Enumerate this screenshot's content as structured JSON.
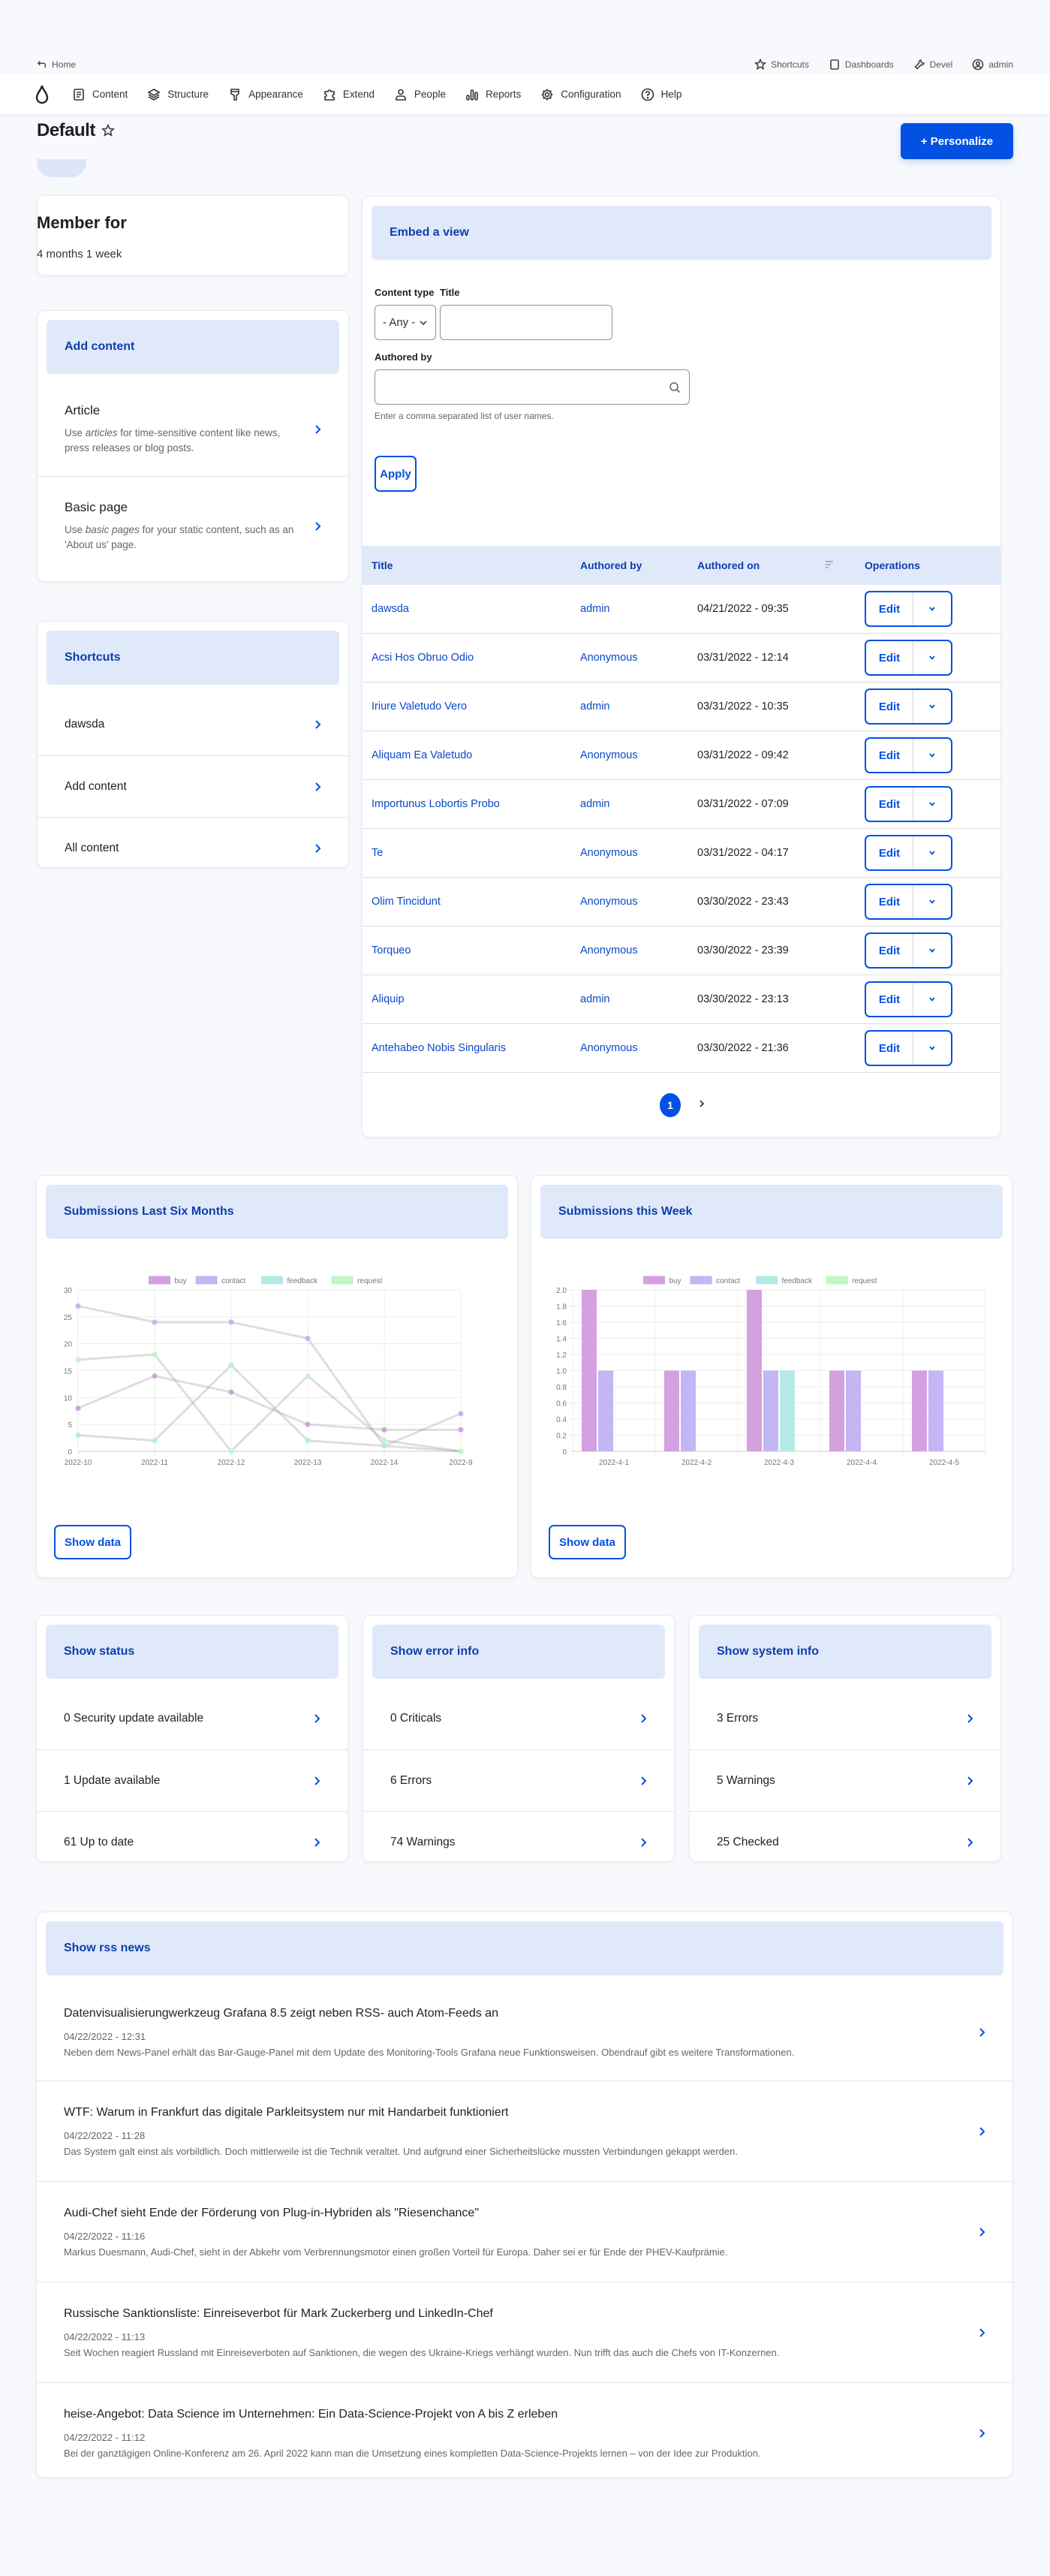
{
  "util_bar": {
    "home": "Home",
    "right": [
      {
        "label": "Shortcuts",
        "icon": "star-icon"
      },
      {
        "label": "Dashboards",
        "icon": "square-icon"
      },
      {
        "label": "Devel",
        "icon": "wrench-icon"
      },
      {
        "label": "admin",
        "icon": "user-circle-icon"
      }
    ]
  },
  "nav": {
    "items": [
      {
        "label": "Content",
        "icon": "document-icon"
      },
      {
        "label": "Structure",
        "icon": "layers-icon"
      },
      {
        "label": "Appearance",
        "icon": "paintbrush-icon"
      },
      {
        "label": "Extend",
        "icon": "puzzle-icon"
      },
      {
        "label": "People",
        "icon": "person-icon"
      },
      {
        "label": "Reports",
        "icon": "bar-chart-icon"
      },
      {
        "label": "Configuration",
        "icon": "gear-icon"
      },
      {
        "label": "Help",
        "icon": "help-icon"
      }
    ]
  },
  "page": {
    "title": "Default",
    "personalize_label": "+ Personalize"
  },
  "member": {
    "title": "Member for",
    "value": "4 months 1 week"
  },
  "add_content": {
    "title": "Add content",
    "items": [
      {
        "title": "Article",
        "desc_pre": "Use ",
        "desc_em": "articles",
        "desc_post": " for time-sensitive content like news, press releases or blog posts."
      },
      {
        "title": "Basic page",
        "desc_pre": "Use ",
        "desc_em": "basic pages",
        "desc_post": " for your static content, such as an 'About us' page."
      }
    ]
  },
  "shortcuts": {
    "title": "Shortcuts",
    "items": [
      "dawsda",
      "Add content",
      "All content"
    ]
  },
  "view": {
    "title": "Embed a view",
    "filters": {
      "content_type_label": "Content type",
      "content_type_value": "- Any -",
      "title_label": "Title",
      "title_value": "",
      "authored_by_label": "Authored by",
      "authored_by_value": "",
      "authored_by_help": "Enter a comma separated list of user names.",
      "apply_label": "Apply"
    },
    "table": {
      "headers": [
        "Title",
        "Authored by",
        "Authored on",
        "Operations"
      ],
      "edit_label": "Edit",
      "rows": [
        {
          "title": "dawsda",
          "author": "admin",
          "date": "04/21/2022 - 09:35"
        },
        {
          "title": "Acsi Hos Obruo Odio",
          "author": "Anonymous",
          "date": "03/31/2022 - 12:14"
        },
        {
          "title": "Iriure Valetudo Vero",
          "author": "admin",
          "date": "03/31/2022 - 10:35"
        },
        {
          "title": "Aliquam Ea Valetudo",
          "author": "Anonymous",
          "date": "03/31/2022 - 09:42"
        },
        {
          "title": "Importunus Lobortis Probo",
          "author": "admin",
          "date": "03/31/2022 - 07:09"
        },
        {
          "title": "Te",
          "author": "Anonymous",
          "date": "03/31/2022 - 04:17"
        },
        {
          "title": "Olim Tincidunt",
          "author": "Anonymous",
          "date": "03/30/2022 - 23:43"
        },
        {
          "title": "Torqueo",
          "author": "Anonymous",
          "date": "03/30/2022 - 23:39"
        },
        {
          "title": "Aliquip",
          "author": "admin",
          "date": "03/30/2022 - 23:13"
        },
        {
          "title": "Antehabeo Nobis Singularis",
          "author": "Anonymous",
          "date": "03/30/2022 - 21:36"
        }
      ]
    },
    "pager": {
      "current": "1"
    }
  },
  "charts": {
    "six_months": {
      "title": "Submissions Last Six Months",
      "button": "Show data"
    },
    "this_week": {
      "title": "Submissions this Week",
      "button": "Show data"
    }
  },
  "colors": {
    "buy": "#d3a1e0",
    "contact": "#c4b5f5",
    "feedback": "#b5ebe6",
    "request": "#bff7c4",
    "accent": "#0351e3",
    "header_bg": "#e0e9fa",
    "header_text": "#0d3eab"
  },
  "chart_data": [
    {
      "type": "line",
      "title": "Submissions Last Six Months",
      "categories": [
        "2022-10",
        "2022-11",
        "2022-12",
        "2022-13",
        "2022-14",
        "2022-9"
      ],
      "series": [
        {
          "name": "buy",
          "values": [
            8,
            14,
            11,
            5,
            4,
            4
          ]
        },
        {
          "name": "contact",
          "values": [
            27,
            24,
            24,
            21,
            1,
            7
          ]
        },
        {
          "name": "feedback",
          "values": [
            3,
            2,
            16,
            2,
            1,
            0
          ]
        },
        {
          "name": "request",
          "values": [
            17,
            18,
            0,
            14,
            2,
            0
          ]
        }
      ],
      "yticks": [
        0,
        5,
        10,
        15,
        20,
        25,
        30
      ],
      "ylim": [
        0,
        30
      ],
      "xlabel": "",
      "ylabel": "",
      "legend_position": "top",
      "grid": true
    },
    {
      "type": "bar",
      "title": "Submissions this Week",
      "categories": [
        "2022-4-1",
        "2022-4-2",
        "2022-4-3",
        "2022-4-4",
        "2022-4-5"
      ],
      "series": [
        {
          "name": "buy",
          "values": [
            2,
            1,
            2,
            1,
            1
          ]
        },
        {
          "name": "contact",
          "values": [
            1,
            1,
            1,
            1,
            1
          ]
        },
        {
          "name": "feedback",
          "values": [
            0,
            0,
            1,
            0,
            0
          ]
        },
        {
          "name": "request",
          "values": [
            0,
            0,
            0,
            0,
            0
          ]
        }
      ],
      "yticks": [
        "0",
        "0.2",
        "0.4",
        "0.6",
        "0.8",
        "1.0",
        "1.2",
        "1.4",
        "1.6",
        "1.8",
        "2.0"
      ],
      "ylim": [
        0,
        2
      ],
      "xlabel": "",
      "ylabel": "",
      "legend_position": "top",
      "grid": true
    }
  ],
  "status": {
    "title": "Show status",
    "items": [
      "0 Security update available",
      "1 Update available",
      "61 Up to date"
    ]
  },
  "error_info": {
    "title": "Show error info",
    "items": [
      "0 Criticals",
      "6 Errors",
      "74 Warnings"
    ]
  },
  "system_info": {
    "title": "Show system info",
    "items": [
      "3 Errors",
      "5 Warnings",
      "25 Checked"
    ]
  },
  "rss": {
    "title": "Show rss news",
    "items": [
      {
        "title": "Datenvisualisierungwerkzeug Grafana 8.5 zeigt neben RSS- auch Atom-Feeds an",
        "date": "04/22/2022 - 12:31",
        "desc": "Neben dem News-Panel erhält das Bar-Gauge-Panel mit dem Update des Monitoring-Tools Grafana neue Funktionsweisen. Obendrauf gibt es weitere Transformationen."
      },
      {
        "title": "WTF: Warum in Frankfurt das digitale Parkleitsystem nur mit Handarbeit funktioniert",
        "date": "04/22/2022 - 11:28",
        "desc": "Das System galt einst als vorbildlich. Doch mittlerweile ist die Technik veraltet. Und aufgrund einer Sicherheitslücke mussten Verbindungen gekappt werden."
      },
      {
        "title": "Audi-Chef sieht Ende der Förderung von Plug-in-Hybriden als \"Riesenchance\"",
        "date": "04/22/2022 - 11:16",
        "desc": "Markus Duesmann, Audi-Chef, sieht in der Abkehr vom Verbrennungsmotor einen großen Vorteil für Europa. Daher sei er für Ende der PHEV-Kaufprämie."
      },
      {
        "title": "Russische Sanktionsliste: Einreiseverbot für Mark Zuckerberg und LinkedIn-Chef",
        "date": "04/22/2022 - 11:13",
        "desc": "Seit Wochen reagiert Russland mit Einreiseverboten auf Sanktionen, die wegen des Ukraine-Kriegs verhängt wurden. Nun trifft das auch die Chefs von IT-Konzernen."
      },
      {
        "title": "heise-Angebot: Data Science im Unternehmen: Ein Data-Science-Projekt von A bis Z erleben",
        "date": "04/22/2022 - 11:12",
        "desc": "Bei der ganztägigen Online-Konferenz am 26. April 2022 kann man die Umsetzung eines kompletten Data-Science-Projekts lernen – von der Idee zur Produktion."
      }
    ]
  }
}
